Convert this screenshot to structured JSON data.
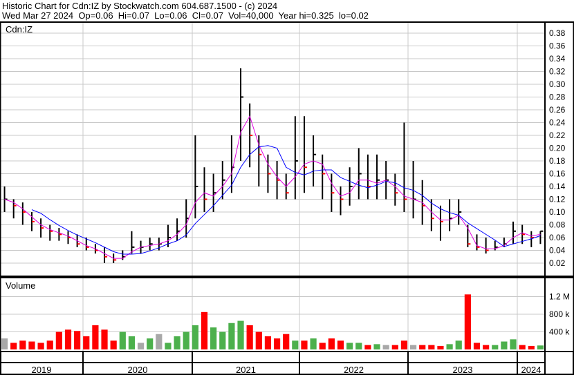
{
  "header": {
    "title": "Historic Chart for Cdn:IZ by Stockwatch.com 604.687.1500 - (c) 2024",
    "quote": "Wed Mar 27 2024  Op=0.06  Hi=0.07  Lo=0.06  Cl=0.07  Vol=40,000  Year hi=0.325  lo=0.02"
  },
  "colors": {
    "up": "#4cb04c",
    "down": "#ff0000",
    "neutral": "#a8a8a8",
    "price": "#000000",
    "ma_fast": "#e000e0",
    "ma_slow": "#0000ff",
    "grid": "#c8c8c8"
  },
  "chart_data": [
    {
      "type": "bar",
      "panel": "price",
      "label": "Cdn:IZ",
      "ylim": [
        0,
        0.4
      ],
      "yticks": [
        0.02,
        0.04,
        0.06,
        0.08,
        0.1,
        0.12,
        0.14,
        0.16,
        0.18,
        0.2,
        0.22,
        0.24,
        0.26,
        0.28,
        0.3,
        0.32,
        0.34,
        0.36,
        0.38
      ],
      "ytick_labels": [
        "0.02",
        "0.04",
        "0.06",
        "0.08",
        "0.10",
        "0.12",
        "0.14",
        "0.16",
        "0.18",
        "0.20",
        "0.22",
        "0.24",
        "0.26",
        "0.28",
        "0.30",
        "0.32",
        "0.34",
        "0.36",
        "0.38"
      ],
      "grid": true,
      "x": [
        "2019-04",
        "2019-05",
        "2019-06",
        "2019-07",
        "2019-08",
        "2019-09",
        "2019-10",
        "2019-11",
        "2019-12",
        "2020-01",
        "2020-02",
        "2020-03",
        "2020-04",
        "2020-05",
        "2020-06",
        "2020-07",
        "2020-08",
        "2020-09",
        "2020-10",
        "2020-11",
        "2020-12",
        "2021-01",
        "2021-02",
        "2021-03",
        "2021-04",
        "2021-05",
        "2021-06",
        "2021-07",
        "2021-08",
        "2021-09",
        "2021-10",
        "2021-11",
        "2021-12",
        "2022-01",
        "2022-02",
        "2022-03",
        "2022-04",
        "2022-05",
        "2022-06",
        "2022-07",
        "2022-08",
        "2022-09",
        "2022-10",
        "2022-11",
        "2022-12",
        "2023-01",
        "2023-02",
        "2023-03",
        "2023-04",
        "2023-05",
        "2023-06",
        "2023-07",
        "2023-08",
        "2023-09",
        "2023-10",
        "2023-11",
        "2023-12",
        "2024-01",
        "2024-02",
        "2024-03"
      ],
      "high": [
        0.14,
        0.12,
        0.115,
        0.1,
        0.09,
        0.08,
        0.075,
        0.07,
        0.065,
        0.06,
        0.05,
        0.045,
        0.035,
        0.04,
        0.07,
        0.055,
        0.06,
        0.06,
        0.08,
        0.09,
        0.12,
        0.22,
        0.17,
        0.16,
        0.18,
        0.22,
        0.325,
        0.27,
        0.22,
        0.19,
        0.18,
        0.16,
        0.25,
        0.25,
        0.22,
        0.19,
        0.16,
        0.14,
        0.17,
        0.2,
        0.19,
        0.19,
        0.18,
        0.16,
        0.24,
        0.18,
        0.15,
        0.12,
        0.11,
        0.12,
        0.12,
        0.08,
        0.065,
        0.06,
        0.055,
        0.06,
        0.085,
        0.08,
        0.07,
        0.07
      ],
      "low": [
        0.1,
        0.09,
        0.08,
        0.07,
        0.06,
        0.055,
        0.055,
        0.05,
        0.045,
        0.04,
        0.035,
        0.02,
        0.02,
        0.025,
        0.035,
        0.035,
        0.04,
        0.04,
        0.045,
        0.055,
        0.06,
        0.09,
        0.1,
        0.1,
        0.12,
        0.13,
        0.18,
        0.17,
        0.14,
        0.13,
        0.12,
        0.12,
        0.12,
        0.13,
        0.14,
        0.12,
        0.1,
        0.095,
        0.11,
        0.12,
        0.12,
        0.12,
        0.12,
        0.11,
        0.1,
        0.09,
        0.08,
        0.07,
        0.055,
        0.07,
        0.08,
        0.045,
        0.04,
        0.035,
        0.04,
        0.045,
        0.05,
        0.05,
        0.045,
        0.05
      ],
      "close": [
        0.12,
        0.11,
        0.1,
        0.085,
        0.075,
        0.07,
        0.065,
        0.06,
        0.05,
        0.045,
        0.04,
        0.03,
        0.025,
        0.03,
        0.045,
        0.045,
        0.05,
        0.05,
        0.06,
        0.07,
        0.09,
        0.14,
        0.12,
        0.13,
        0.15,
        0.17,
        0.28,
        0.22,
        0.19,
        0.16,
        0.15,
        0.13,
        0.18,
        0.17,
        0.19,
        0.16,
        0.13,
        0.12,
        0.14,
        0.16,
        0.14,
        0.15,
        0.15,
        0.13,
        0.12,
        0.12,
        0.11,
        0.09,
        0.085,
        0.09,
        0.1,
        0.05,
        0.045,
        0.04,
        0.045,
        0.05,
        0.07,
        0.065,
        0.06,
        0.07
      ]
    },
    {
      "type": "bar",
      "panel": "volume",
      "label": "Volume",
      "ylim": [
        0,
        1500000
      ],
      "yticks": [
        400000,
        800000,
        1200000
      ],
      "ytick_labels": [
        "400 k",
        "800 k",
        "1.2 M"
      ],
      "grid": true,
      "values": [
        250000,
        150000,
        200000,
        180000,
        150000,
        200000,
        400000,
        450000,
        420000,
        300000,
        550000,
        450000,
        200000,
        400000,
        300000,
        150000,
        250000,
        350000,
        150000,
        300000,
        400000,
        550000,
        850000,
        500000,
        400000,
        600000,
        650000,
        550000,
        400000,
        300000,
        250000,
        350000,
        200000,
        200000,
        250000,
        150000,
        250000,
        200000,
        150000,
        150000,
        100000,
        120000,
        100000,
        100000,
        200000,
        100000,
        100000,
        100000,
        80000,
        120000,
        200000,
        1250000,
        150000,
        100000,
        100000,
        180000,
        230000,
        100000,
        80000,
        90000
      ]
    }
  ],
  "xaxis": {
    "years": [
      "2019",
      "2020",
      "2021",
      "2022",
      "2023",
      "2024"
    ]
  }
}
